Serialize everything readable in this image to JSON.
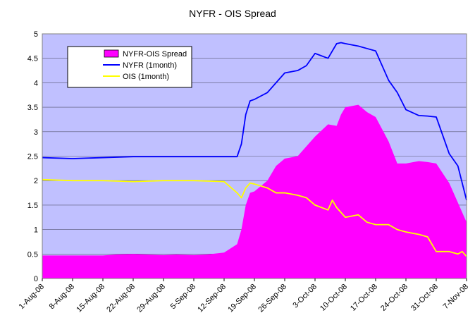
{
  "chart_data": {
    "type": "area",
    "title": "NYFR - OIS Spread",
    "xlabel": "",
    "ylabel": "",
    "ylim": [
      0,
      5
    ],
    "yticks": [
      "0",
      "0.5",
      "1",
      "1.5",
      "2",
      "2.5",
      "3",
      "3.5",
      "4",
      "4.5",
      "5"
    ],
    "x_range": [
      "2008-08-01",
      "2008-11-07"
    ],
    "xticks": [
      "1-Aug-08",
      "8-Aug-08",
      "15-Aug-08",
      "22-Aug-08",
      "29-Aug-08",
      "5-Sep-08",
      "12-Sep-08",
      "19-Sep-08",
      "26-Sep-08",
      "3-Oct-08",
      "10-Oct-08",
      "17-Oct-08",
      "24-Oct-08",
      "31-Oct-08",
      "7-Nov-08"
    ],
    "grid": true,
    "legend_position": "top-left",
    "plot_background": "#C0C0FF",
    "series": [
      {
        "name": "NYFR-OIS Spread",
        "kind": "area",
        "color": "#FF00FF",
        "x": [
          "2008-08-01",
          "2008-08-08",
          "2008-08-15",
          "2008-08-18",
          "2008-08-22",
          "2008-08-25",
          "2008-08-29",
          "2008-09-01",
          "2008-09-05",
          "2008-09-08",
          "2008-09-12",
          "2008-09-15",
          "2008-09-16",
          "2008-09-17",
          "2008-09-18",
          "2008-09-19",
          "2008-09-22",
          "2008-09-24",
          "2008-09-26",
          "2008-09-29",
          "2008-10-01",
          "2008-10-03",
          "2008-10-06",
          "2008-10-08",
          "2008-10-09",
          "2008-10-10",
          "2008-10-13",
          "2008-10-15",
          "2008-10-17",
          "2008-10-20",
          "2008-10-22",
          "2008-10-24",
          "2008-10-27",
          "2008-10-29",
          "2008-10-31",
          "2008-11-03",
          "2008-11-05",
          "2008-11-07"
        ],
        "values": [
          0.47,
          0.47,
          0.47,
          0.49,
          0.5,
          0.49,
          0.48,
          0.49,
          0.48,
          0.49,
          0.53,
          0.7,
          1.0,
          1.5,
          1.75,
          1.78,
          2.0,
          2.3,
          2.45,
          2.5,
          2.7,
          2.9,
          3.15,
          3.12,
          3.35,
          3.5,
          3.55,
          3.4,
          3.3,
          2.8,
          2.35,
          2.35,
          2.4,
          2.38,
          2.35,
          1.95,
          1.55,
          1.15
        ]
      },
      {
        "name": "NYFR (1month)",
        "kind": "line",
        "color": "#0000FF",
        "x": [
          "2008-08-01",
          "2008-08-08",
          "2008-08-15",
          "2008-08-22",
          "2008-08-29",
          "2008-09-05",
          "2008-09-12",
          "2008-09-15",
          "2008-09-16",
          "2008-09-17",
          "2008-09-18",
          "2008-09-19",
          "2008-09-22",
          "2008-09-24",
          "2008-09-26",
          "2008-09-29",
          "2008-10-01",
          "2008-10-03",
          "2008-10-06",
          "2008-10-08",
          "2008-10-09",
          "2008-10-10",
          "2008-10-13",
          "2008-10-15",
          "2008-10-17",
          "2008-10-20",
          "2008-10-22",
          "2008-10-24",
          "2008-10-27",
          "2008-10-29",
          "2008-10-31",
          "2008-11-03",
          "2008-11-05",
          "2008-11-07"
        ],
        "values": [
          2.47,
          2.45,
          2.47,
          2.49,
          2.49,
          2.49,
          2.49,
          2.49,
          2.75,
          3.35,
          3.63,
          3.66,
          3.8,
          4.0,
          4.2,
          4.25,
          4.35,
          4.6,
          4.5,
          4.8,
          4.82,
          4.8,
          4.75,
          4.7,
          4.65,
          4.05,
          3.8,
          3.45,
          3.33,
          3.32,
          3.3,
          2.55,
          2.3,
          1.6
        ]
      },
      {
        "name": "OIS (1month)",
        "kind": "line",
        "color": "#FFFF00",
        "x": [
          "2008-08-01",
          "2008-08-08",
          "2008-08-15",
          "2008-08-22",
          "2008-08-29",
          "2008-09-05",
          "2008-09-12",
          "2008-09-15",
          "2008-09-16",
          "2008-09-17",
          "2008-09-18",
          "2008-09-19",
          "2008-09-22",
          "2008-09-24",
          "2008-09-26",
          "2008-09-29",
          "2008-10-01",
          "2008-10-03",
          "2008-10-06",
          "2008-10-07",
          "2008-10-08",
          "2008-10-09",
          "2008-10-10",
          "2008-10-13",
          "2008-10-15",
          "2008-10-17",
          "2008-10-20",
          "2008-10-22",
          "2008-10-24",
          "2008-10-27",
          "2008-10-29",
          "2008-10-31",
          "2008-11-03",
          "2008-11-05",
          "2008-11-06",
          "2008-11-07"
        ],
        "values": [
          2.02,
          2.0,
          2.0,
          1.98,
          2.0,
          2.0,
          1.98,
          1.75,
          1.65,
          1.85,
          1.95,
          1.93,
          1.85,
          1.75,
          1.75,
          1.7,
          1.65,
          1.5,
          1.4,
          1.6,
          1.45,
          1.35,
          1.25,
          1.3,
          1.15,
          1.1,
          1.1,
          1.0,
          0.95,
          0.9,
          0.85,
          0.55,
          0.55,
          0.5,
          0.55,
          0.45
        ]
      }
    ]
  }
}
